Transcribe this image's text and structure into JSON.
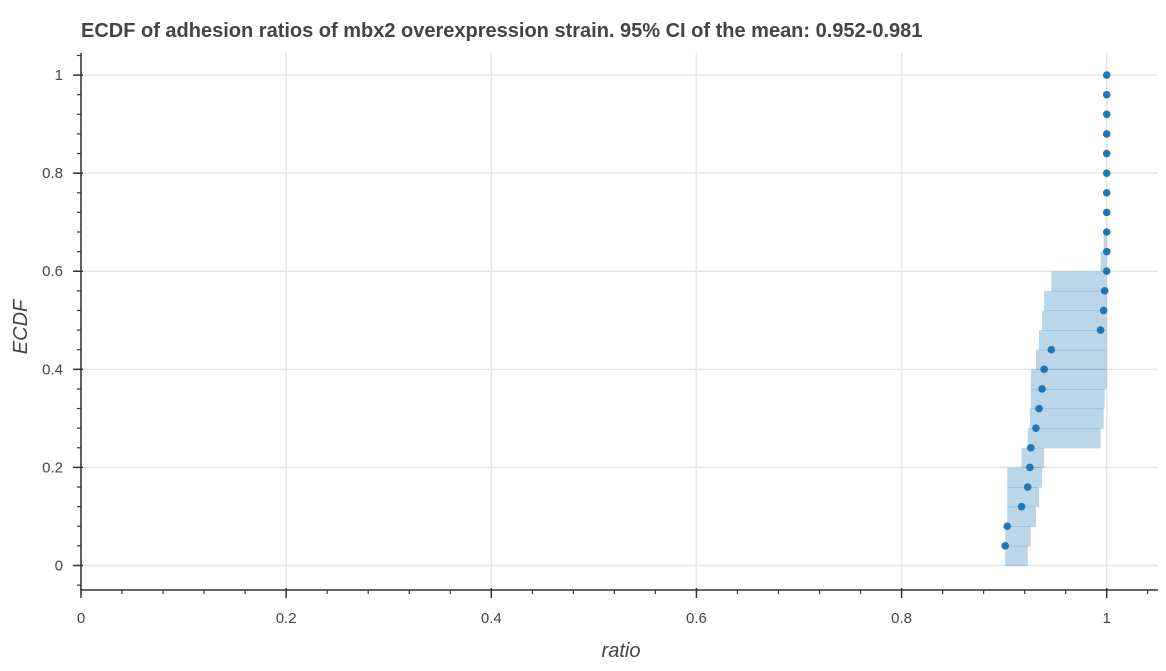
{
  "chart_data": {
    "type": "scatter",
    "title": "ECDF of adhesion ratios of mbx2 overexpression strain. 95% CI of the mean: 0.952-0.981",
    "xlabel": "ratio",
    "ylabel": "ECDF",
    "xlim": [
      0,
      1.05
    ],
    "ylim": [
      -0.05,
      1.045
    ],
    "x_ticks": [
      0,
      0.2,
      0.4,
      0.6,
      0.8,
      1
    ],
    "x_tick_labels": [
      "0",
      "0.2",
      "0.4",
      "0.6",
      "0.8",
      "1"
    ],
    "y_ticks": [
      0,
      0.2,
      0.4,
      0.6,
      0.8,
      1
    ],
    "y_tick_labels": [
      "0",
      "0.2",
      "0.4",
      "0.6",
      "0.8",
      "1"
    ],
    "grid": true,
    "series": [
      {
        "marker_color": "#1f77b4",
        "points": [
          {
            "x": 0.901,
            "y": 0.04
          },
          {
            "x": 0.903,
            "y": 0.08
          },
          {
            "x": 0.917,
            "y": 0.12
          },
          {
            "x": 0.923,
            "y": 0.16
          },
          {
            "x": 0.925,
            "y": 0.2
          },
          {
            "x": 0.926,
            "y": 0.24
          },
          {
            "x": 0.931,
            "y": 0.28
          },
          {
            "x": 0.934,
            "y": 0.32
          },
          {
            "x": 0.937,
            "y": 0.36
          },
          {
            "x": 0.939,
            "y": 0.4
          },
          {
            "x": 0.946,
            "y": 0.44
          },
          {
            "x": 0.994,
            "y": 0.48
          },
          {
            "x": 0.997,
            "y": 0.52
          },
          {
            "x": 0.998,
            "y": 0.56
          },
          {
            "x": 1.0,
            "y": 0.6
          },
          {
            "x": 1.0,
            "y": 0.64
          },
          {
            "x": 1.0,
            "y": 0.68
          },
          {
            "x": 1.0,
            "y": 0.72
          },
          {
            "x": 1.0,
            "y": 0.76
          },
          {
            "x": 1.0,
            "y": 0.8
          },
          {
            "x": 1.0,
            "y": 0.84
          },
          {
            "x": 1.0,
            "y": 0.88
          },
          {
            "x": 1.0,
            "y": 0.92
          },
          {
            "x": 1.0,
            "y": 0.96
          },
          {
            "x": 1.0,
            "y": 1.0
          }
        ]
      }
    ],
    "confidence_band": {
      "color": "#1f77b4",
      "opacity": 0.3,
      "steps": [
        {
          "x0": 0.901,
          "x1": 0.923,
          "y0": 0.0,
          "y1": 0.04
        },
        {
          "x0": 0.901,
          "x1": 0.926,
          "y0": 0.04,
          "y1": 0.08
        },
        {
          "x0": 0.903,
          "x1": 0.931,
          "y0": 0.08,
          "y1": 0.12
        },
        {
          "x0": 0.903,
          "x1": 0.934,
          "y0": 0.12,
          "y1": 0.16
        },
        {
          "x0": 0.903,
          "x1": 0.937,
          "y0": 0.16,
          "y1": 0.2
        },
        {
          "x0": 0.917,
          "x1": 0.939,
          "y0": 0.2,
          "y1": 0.24
        },
        {
          "x0": 0.923,
          "x1": 0.994,
          "y0": 0.24,
          "y1": 0.28
        },
        {
          "x0": 0.925,
          "x1": 0.997,
          "y0": 0.28,
          "y1": 0.32
        },
        {
          "x0": 0.926,
          "x1": 0.998,
          "y0": 0.32,
          "y1": 0.36
        },
        {
          "x0": 0.926,
          "x1": 1.0,
          "y0": 0.36,
          "y1": 0.4
        },
        {
          "x0": 0.931,
          "x1": 1.0,
          "y0": 0.4,
          "y1": 0.44
        },
        {
          "x0": 0.934,
          "x1": 1.0,
          "y0": 0.44,
          "y1": 0.48
        },
        {
          "x0": 0.937,
          "x1": 1.0,
          "y0": 0.48,
          "y1": 0.52
        },
        {
          "x0": 0.939,
          "x1": 1.0,
          "y0": 0.52,
          "y1": 0.56
        },
        {
          "x0": 0.946,
          "x1": 1.0,
          "y0": 0.56,
          "y1": 0.6
        },
        {
          "x0": 0.994,
          "x1": 1.0,
          "y0": 0.6,
          "y1": 0.64
        },
        {
          "x0": 0.997,
          "x1": 1.0,
          "y0": 0.64,
          "y1": 0.68
        }
      ]
    }
  }
}
